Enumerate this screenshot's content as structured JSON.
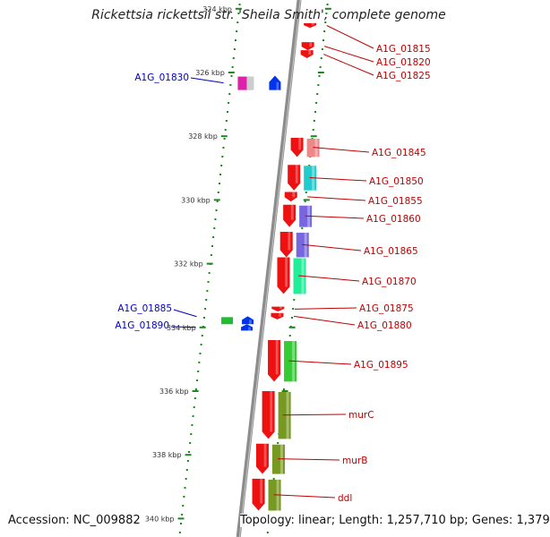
{
  "title": "Rickettsia rickettsii str. 'Sheila Smith', complete genome",
  "footer": {
    "accession": "Accession: NC_009882",
    "summary": "Topology: linear; Length: 1,257,710 bp; Genes: 1,379"
  },
  "colors": {
    "backbone": "#8c8c8c",
    "tick": "#1a8a1a",
    "forward_label": "#c00000",
    "reverse_label": "#0000c0"
  },
  "ticks": [
    {
      "label": "324 kbp",
      "kbp": 324
    },
    {
      "label": "326 kbp",
      "kbp": 326
    },
    {
      "label": "328 kbp",
      "kbp": 328
    },
    {
      "label": "330 kbp",
      "kbp": 330
    },
    {
      "label": "332 kbp",
      "kbp": 332
    },
    {
      "label": "334 kbp",
      "kbp": 334
    },
    {
      "label": "336 kbp",
      "kbp": 336
    },
    {
      "label": "338 kbp",
      "kbp": 338
    },
    {
      "label": "340 kbp",
      "kbp": 340
    }
  ],
  "forward_genes": [
    {
      "label": "A1G_01815",
      "start_kbp": 324.45,
      "end_kbp": 324.6,
      "color": "#ee1111",
      "pair": null
    },
    {
      "label": "A1G_01820",
      "start_kbp": 325.05,
      "end_kbp": 325.3,
      "color": "#ee1111",
      "pair": null
    },
    {
      "label": "A1G_01825",
      "start_kbp": 325.3,
      "end_kbp": 325.55,
      "color": "#ee1111",
      "pair": null
    },
    {
      "label": "A1G_01845",
      "start_kbp": 328.05,
      "end_kbp": 328.65,
      "color": "#ee1111",
      "pair": "#ee8888"
    },
    {
      "label": "A1G_01850",
      "start_kbp": 328.9,
      "end_kbp": 329.7,
      "color": "#ee1111",
      "pair": "#22cccc"
    },
    {
      "label": "A1G_01855",
      "start_kbp": 329.75,
      "end_kbp": 330.05,
      "color": "#ee1111",
      "pair": null
    },
    {
      "label": "A1G_01860",
      "start_kbp": 330.15,
      "end_kbp": 330.85,
      "color": "#ee1111",
      "pair": "#7766dd"
    },
    {
      "label": "A1G_01865",
      "start_kbp": 331.0,
      "end_kbp": 331.8,
      "color": "#ee1111",
      "pair": "#7766dd"
    },
    {
      "label": "A1G_01870",
      "start_kbp": 331.8,
      "end_kbp": 332.95,
      "color": "#ee1111",
      "pair": "#22ee99"
    },
    {
      "label": "A1G_01875",
      "start_kbp": 333.35,
      "end_kbp": 333.5,
      "color": "#ee1111",
      "pair": null
    },
    {
      "label": "A1G_01880",
      "start_kbp": 333.55,
      "end_kbp": 333.75,
      "color": "#ee1111",
      "pair": null
    },
    {
      "label": "A1G_01895",
      "start_kbp": 334.4,
      "end_kbp": 335.7,
      "color": "#ee1111",
      "pair": "#33cc33"
    },
    {
      "label": "murC",
      "start_kbp": 336.0,
      "end_kbp": 337.5,
      "color": "#ee1111",
      "pair": "#779922"
    },
    {
      "label": "murB",
      "start_kbp": 337.65,
      "end_kbp": 338.6,
      "color": "#ee1111",
      "pair": "#779922"
    },
    {
      "label": "ddl",
      "start_kbp": 338.75,
      "end_kbp": 339.75,
      "color": "#ee1111",
      "pair": "#779922"
    }
  ],
  "reverse_genes": [
    {
      "label": "A1G_01830",
      "start_kbp": 326.1,
      "end_kbp": 326.55,
      "color": "#0033ee",
      "pair": "#dd22aa"
    },
    {
      "label": "A1G_01885",
      "start_kbp": 333.65,
      "end_kbp": 333.9,
      "color": "#0033ee",
      "pair": "#22bb33"
    },
    {
      "label": "A1G_01890",
      "start_kbp": 333.9,
      "end_kbp": 334.1,
      "color": "#0033ee",
      "pair": null
    }
  ]
}
